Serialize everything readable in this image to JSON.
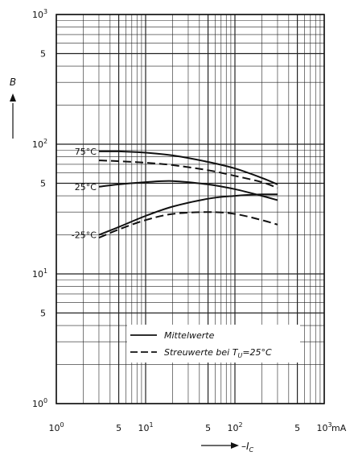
{
  "chart_data": {
    "type": "line",
    "x_scale": "log",
    "y_scale": "log",
    "xlim": [
      1,
      1000
    ],
    "ylim": [
      1,
      1000
    ],
    "xlabel": "I",
    "xlabel_sub": "C",
    "ylabel": "B",
    "x_unit": "mA",
    "grid": true,
    "x_ticks": [
      {
        "value": 1,
        "label": "10",
        "sup": "0"
      },
      {
        "value": 5,
        "label": "5",
        "sup": ""
      },
      {
        "value": 10,
        "label": "10",
        "sup": "1"
      },
      {
        "value": 50,
        "label": "5",
        "sup": ""
      },
      {
        "value": 100,
        "label": "10",
        "sup": "2"
      },
      {
        "value": 500,
        "label": "5",
        "sup": ""
      },
      {
        "value": 1000,
        "label": "10",
        "sup": "3"
      }
    ],
    "y_ticks": [
      {
        "value": 1,
        "label": "10",
        "sup": "0"
      },
      {
        "value": 5,
        "label": "5",
        "sup": ""
      },
      {
        "value": 10,
        "label": "10",
        "sup": "1"
      },
      {
        "value": 50,
        "label": "5",
        "sup": ""
      },
      {
        "value": 100,
        "label": "10",
        "sup": "2"
      },
      {
        "value": 500,
        "label": "5",
        "sup": ""
      },
      {
        "value": 1000,
        "label": "10",
        "sup": "3"
      }
    ],
    "series": [
      {
        "label": "75°C",
        "style": "solid",
        "x": [
          3,
          5,
          10,
          20,
          50,
          100,
          200,
          300
        ],
        "y": [
          88,
          88,
          86,
          82,
          73,
          65,
          55,
          49
        ]
      },
      {
        "label": "75°C",
        "style": "dashed",
        "x": [
          3,
          5,
          10,
          20,
          50,
          100,
          200,
          300
        ],
        "y": [
          75,
          74,
          72,
          69,
          63,
          57,
          51,
          46
        ]
      },
      {
        "label": "25°C",
        "style": "solid",
        "x": [
          3,
          5,
          10,
          20,
          50,
          100,
          200,
          300
        ],
        "y": [
          47,
          49,
          51,
          52,
          49,
          45,
          40,
          37
        ]
      },
      {
        "label": "-25°C",
        "style": "solid",
        "x": [
          3,
          5,
          10,
          20,
          50,
          100,
          200,
          300
        ],
        "y": [
          20,
          23,
          28,
          33,
          38,
          40,
          41,
          41
        ]
      },
      {
        "label": "-25°C",
        "style": "dashed",
        "x": [
          3,
          5,
          10,
          20,
          50,
          100,
          200,
          300
        ],
        "y": [
          19,
          22,
          26,
          29,
          30,
          29,
          26,
          24
        ]
      }
    ],
    "curve_labels": [
      "75°C",
      "25°C",
      "-25°C"
    ],
    "legend": {
      "items": [
        {
          "style": "solid",
          "text": "Mittelwerte"
        },
        {
          "style": "dashed",
          "text": "Streuwerte bei T",
          "sub": "U",
          "suffix": "=25°C"
        }
      ]
    }
  }
}
